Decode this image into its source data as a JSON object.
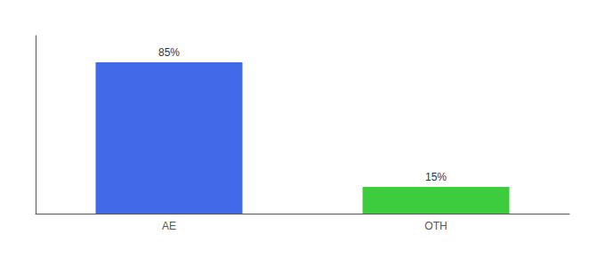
{
  "chart_data": {
    "type": "bar",
    "categories": [
      "AE",
      "OTH"
    ],
    "values": [
      85,
      15
    ],
    "colors": [
      "#4169e8",
      "#3dcc3d"
    ],
    "value_labels": [
      "85%",
      "15%"
    ],
    "data_labels": true,
    "ylim": [
      0,
      100
    ],
    "tick_labels": "x",
    "grid": false
  }
}
